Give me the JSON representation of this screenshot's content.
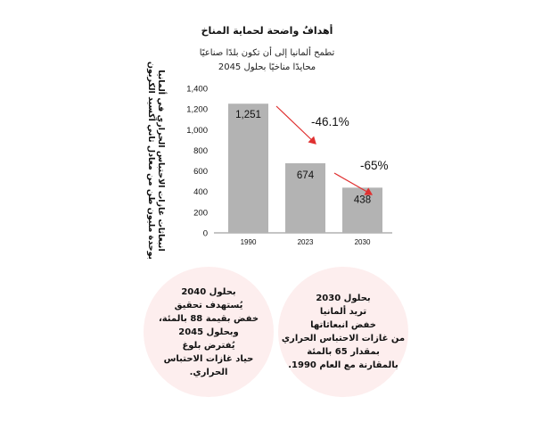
{
  "title": "أهدافٌ واضحة لحماية المناخ",
  "subtitle_line1": "تطمح ألمانيا إلى أن تكون بلدًا صناعيًا",
  "subtitle_line2": "محايدًا مناخيًا بحلول 2045",
  "chart_data": {
    "type": "bar",
    "categories": [
      "1990",
      "2023",
      "2030"
    ],
    "values": [
      1251,
      674,
      438
    ],
    "value_labels": [
      "1,251",
      "674",
      "438"
    ],
    "ylim": [
      0,
      1400
    ],
    "yticks": [
      0,
      200,
      400,
      600,
      800,
      "1,000",
      "1,200",
      "1,400"
    ],
    "ylabel_line1": "انبعاثات غازات الاحتباس الحراري في ألمانيا",
    "ylabel_line2": "بوحدة مليون طن من معادل ثاني أكسيد الكربون",
    "bar_color": "#b3b3b3",
    "arrow_color": "#e03030",
    "annotations": [
      "-46.1%",
      "-65%"
    ],
    "grid": false
  },
  "circle_left": {
    "lines": [
      "بحلول 2040",
      "يُستهدف تحقيق",
      "خفض بقيمة 88 بالمئة،",
      "وبحلول 2045",
      "يُفترض بلوغ",
      "حياد غازات الاحتباس",
      "الحراري."
    ]
  },
  "circle_right": {
    "lines": [
      "بحلول 2030",
      "تريد ألمانيا",
      "خفض انبعاثاتها",
      "من غازات الاحتباس الحراري",
      "بمقدار 65 بالمئة",
      "بالمقارنة مع العام 1990."
    ]
  },
  "colors": {
    "circle_fill": "#fdeeee"
  }
}
